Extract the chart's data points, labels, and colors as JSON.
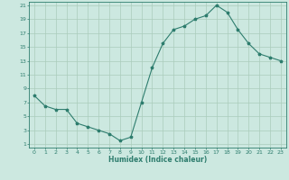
{
  "x": [
    0,
    1,
    2,
    3,
    4,
    5,
    6,
    7,
    8,
    9,
    10,
    11,
    12,
    13,
    14,
    15,
    16,
    17,
    18,
    19,
    20,
    21,
    22,
    23
  ],
  "y": [
    8.0,
    6.5,
    6.0,
    6.0,
    4.0,
    3.5,
    3.0,
    2.5,
    1.5,
    2.0,
    7.0,
    12.0,
    15.5,
    17.5,
    18.0,
    19.0,
    19.5,
    21.0,
    20.0,
    17.5,
    15.5,
    14.0,
    13.5,
    13.0
  ],
  "xlabel": "Humidex (Indice chaleur)",
  "ylim_min": 1,
  "ylim_max": 21,
  "xlim_min": 0,
  "xlim_max": 23,
  "yticks": [
    1,
    3,
    5,
    7,
    9,
    11,
    13,
    15,
    17,
    19,
    21
  ],
  "xticks": [
    0,
    1,
    2,
    3,
    4,
    5,
    6,
    7,
    8,
    9,
    10,
    11,
    12,
    13,
    14,
    15,
    16,
    17,
    18,
    19,
    20,
    21,
    22,
    23
  ],
  "line_color": "#2e7d6e",
  "marker": "*",
  "bg_color": "#cce8e0",
  "grid_color": "#aaccbb"
}
